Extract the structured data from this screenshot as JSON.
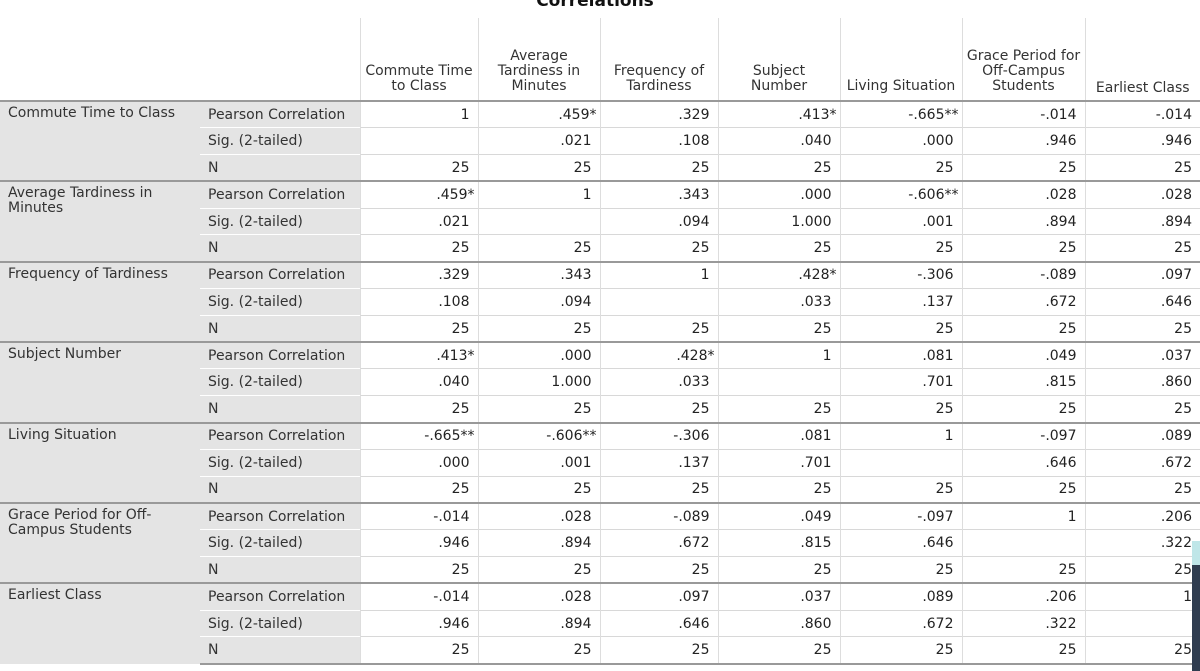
{
  "title": "Correlations",
  "columns": [
    "Commute Time to Class",
    "Average Tardiness in Minutes",
    "Frequency of Tardiness",
    "Subject Number",
    "Living Situation",
    "Grace Period for Off-Campus Students",
    "Earliest Class"
  ],
  "stat_labels": [
    "Pearson Correlation",
    "Sig. (2-tailed)",
    "N"
  ],
  "rows": [
    {
      "variable": "Commute Time to Class",
      "pearson": [
        "1",
        ".459*",
        ".329",
        ".413*",
        "-.665**",
        "-.014",
        "-.014"
      ],
      "sig": [
        "",
        ".021",
        ".108",
        ".040",
        ".000",
        ".946",
        ".946"
      ],
      "n": [
        "25",
        "25",
        "25",
        "25",
        "25",
        "25",
        "25"
      ]
    },
    {
      "variable": "Average Tardiness in Minutes",
      "pearson": [
        ".459*",
        "1",
        ".343",
        ".000",
        "-.606**",
        ".028",
        ".028"
      ],
      "sig": [
        ".021",
        "",
        ".094",
        "1.000",
        ".001",
        ".894",
        ".894"
      ],
      "n": [
        "25",
        "25",
        "25",
        "25",
        "25",
        "25",
        "25"
      ]
    },
    {
      "variable": "Frequency of Tardiness",
      "pearson": [
        ".329",
        ".343",
        "1",
        ".428*",
        "-.306",
        "-.089",
        ".097"
      ],
      "sig": [
        ".108",
        ".094",
        "",
        ".033",
        ".137",
        ".672",
        ".646"
      ],
      "n": [
        "25",
        "25",
        "25",
        "25",
        "25",
        "25",
        "25"
      ]
    },
    {
      "variable": "Subject Number",
      "pearson": [
        ".413*",
        ".000",
        ".428*",
        "1",
        ".081",
        ".049",
        ".037"
      ],
      "sig": [
        ".040",
        "1.000",
        ".033",
        "",
        ".701",
        ".815",
        ".860"
      ],
      "n": [
        "25",
        "25",
        "25",
        "25",
        "25",
        "25",
        "25"
      ]
    },
    {
      "variable": "Living Situation",
      "pearson": [
        "-.665**",
        "-.606**",
        "-.306",
        ".081",
        "1",
        "-.097",
        ".089"
      ],
      "sig": [
        ".000",
        ".001",
        ".137",
        ".701",
        "",
        ".646",
        ".672"
      ],
      "n": [
        "25",
        "25",
        "25",
        "25",
        "25",
        "25",
        "25"
      ]
    },
    {
      "variable": "Grace Period for Off-Campus Students",
      "pearson": [
        "-.014",
        ".028",
        "-.089",
        ".049",
        "-.097",
        "1",
        ".206"
      ],
      "sig": [
        ".946",
        ".894",
        ".672",
        ".815",
        ".646",
        "",
        ".322"
      ],
      "n": [
        "25",
        "25",
        "25",
        "25",
        "25",
        "25",
        "25"
      ]
    },
    {
      "variable": "Earliest Class",
      "pearson": [
        "-.014",
        ".028",
        ".097",
        ".037",
        ".089",
        ".206",
        "1"
      ],
      "sig": [
        ".946",
        ".894",
        ".646",
        ".860",
        ".672",
        ".322",
        ""
      ],
      "n": [
        "25",
        "25",
        "25",
        "25",
        "25",
        "25",
        "25"
      ]
    }
  ]
}
